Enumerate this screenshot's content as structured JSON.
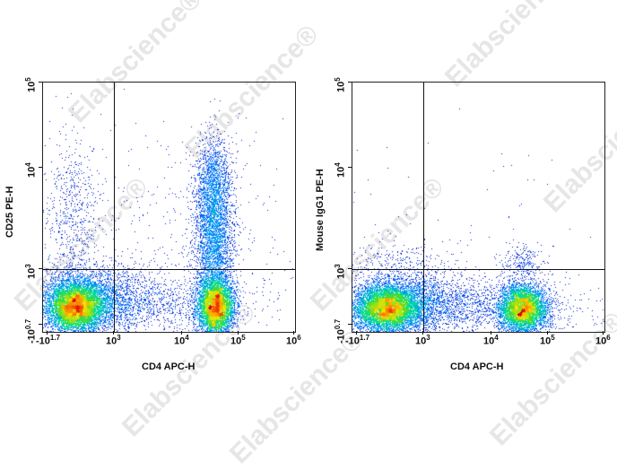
{
  "watermark": "Elabscience®",
  "chart_data": [
    {
      "type": "scatter",
      "subtype": "flow-cytometry-pseudocolor-dotplot",
      "title": "",
      "xlabel": "CD4 APC-H",
      "ylabel": "CD25 PE-H",
      "x_ticks": [
        "-10^1.7",
        "10^3",
        "10^4",
        "10^5",
        "10^6"
      ],
      "y_ticks": [
        "-10^0.7",
        "10^3",
        "10^4",
        "10^5"
      ],
      "x_scale": "biexponential",
      "y_scale": "biexponential",
      "quadrant_gate": {
        "x": "10^3",
        "y": "~1.2x10^3"
      },
      "populations": [
        {
          "name": "CD4- CD25-",
          "x_center": "~10^2",
          "y_center": "~10^2",
          "density": "high"
        },
        {
          "name": "CD4+ CD25-",
          "x_center": "~4x10^4",
          "y_center": "~10^2",
          "density": "high"
        },
        {
          "name": "CD4+ CD25+",
          "x_center": "~4x10^4",
          "y_range": "10^3 - 5x10^4",
          "density": "medium"
        },
        {
          "name": "CD4- CD25+",
          "x_center": "~10^2",
          "y_range": "10^3 - 2x10^4",
          "density": "low"
        }
      ],
      "legend": "none",
      "grid": false
    },
    {
      "type": "scatter",
      "subtype": "flow-cytometry-pseudocolor-dotplot",
      "title": "",
      "xlabel": "CD4 APC-H",
      "ylabel": "Mouse IgG1 PE-H",
      "x_ticks": [
        "-10^1.7",
        "10^3",
        "10^4",
        "10^5",
        "10^6"
      ],
      "y_ticks": [
        "-10^0.7",
        "10^3",
        "10^4",
        "10^5"
      ],
      "x_scale": "biexponential",
      "y_scale": "biexponential",
      "quadrant_gate": {
        "x": "10^3",
        "y": "~1.2x10^3"
      },
      "populations": [
        {
          "name": "CD4- isotype",
          "x_center": "~10^2",
          "y_center": "~10^2",
          "density": "high"
        },
        {
          "name": "CD4+ isotype",
          "x_center": "~4x10^4",
          "y_center": "~10^2",
          "density": "high"
        }
      ],
      "legend": "none",
      "grid": false
    }
  ],
  "plots": [
    {
      "ylabel": "CD25 PE-H",
      "xlabel": "CD4 APC-H",
      "ytick_labels": [
        {
          "base": "10",
          "exp": "5"
        },
        {
          "base": "10",
          "exp": "4"
        },
        {
          "base": "10",
          "exp": "3"
        },
        {
          "base": "-10",
          "exp": "0.7"
        }
      ],
      "xtick_labels": [
        {
          "base": "-10",
          "exp": "1.7"
        },
        {
          "base": "10",
          "exp": "3"
        },
        {
          "base": "10",
          "exp": "4"
        },
        {
          "base": "10",
          "exp": "5"
        },
        {
          "base": "10",
          "exp": "6"
        }
      ]
    },
    {
      "ylabel": "Mouse IgG1 PE-H",
      "xlabel": "CD4 APC-H",
      "ytick_labels": [
        {
          "base": "10",
          "exp": "5"
        },
        {
          "base": "10",
          "exp": "4"
        },
        {
          "base": "10",
          "exp": "3"
        },
        {
          "base": "-10",
          "exp": "0.7"
        }
      ],
      "xtick_labels": [
        {
          "base": "-10",
          "exp": "1.7"
        },
        {
          "base": "10",
          "exp": "3"
        },
        {
          "base": "10",
          "exp": "4"
        },
        {
          "base": "10",
          "exp": "5"
        },
        {
          "base": "10",
          "exp": "6"
        }
      ]
    }
  ]
}
